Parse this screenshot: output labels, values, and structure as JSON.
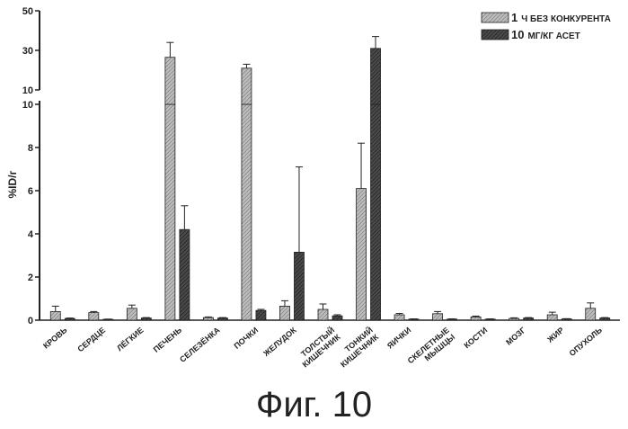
{
  "figure": {
    "caption": "Фиг. 10"
  },
  "chart_data": {
    "type": "bar",
    "ylabel": "%ID/г",
    "xlabel": "",
    "title": "",
    "y_axis": {
      "broken": true,
      "lower_segment": {
        "ylim": [
          0,
          10
        ],
        "ticks": [
          "0",
          "2",
          "4",
          "6",
          "8",
          "10"
        ]
      },
      "upper_segment": {
        "ylim": [
          10,
          50
        ],
        "ticks": [
          "10",
          "30",
          "50"
        ]
      }
    },
    "legend": {
      "placement": "top-right",
      "entries": [
        {
          "number": "1",
          "text": "Ч БЕЗ КОНКУРЕНТА",
          "pattern": "light-hatched"
        },
        {
          "number": "10",
          "text": "МГ/КГ АСЕТ",
          "pattern": "dark-hatched"
        }
      ]
    },
    "categories": [
      {
        "lines": [
          "КРОВЬ"
        ]
      },
      {
        "lines": [
          "СЕРДЦЕ"
        ]
      },
      {
        "lines": [
          "ЛЁГКИЕ"
        ]
      },
      {
        "lines": [
          "ПЕЧЕНЬ"
        ]
      },
      {
        "lines": [
          "СЕЛЕЗЁНКА"
        ]
      },
      {
        "lines": [
          "ПОЧКИ"
        ]
      },
      {
        "lines": [
          "ЖЕЛУДОК"
        ]
      },
      {
        "lines": [
          "ТОЛСТЫЙ",
          "КИШЕЧНИК"
        ]
      },
      {
        "lines": [
          "ТОНКИЙ",
          "КИШЕЧНИК"
        ]
      },
      {
        "lines": [
          "ЯИЧКИ"
        ]
      },
      {
        "lines": [
          "СКЕЛЕТНЫЕ",
          "МЫШЦЫ"
        ]
      },
      {
        "lines": [
          "КОСТИ"
        ]
      },
      {
        "lines": [
          "МОЗГ"
        ]
      },
      {
        "lines": [
          "ЖИР"
        ]
      },
      {
        "lines": [
          "ОПУХОЛЬ"
        ]
      }
    ],
    "series": [
      {
        "legend_index": 0,
        "values": [
          0.4,
          0.35,
          0.55,
          26.5,
          0.12,
          21.0,
          0.65,
          0.5,
          6.1,
          0.25,
          0.3,
          0.15,
          0.08,
          0.25,
          0.55
        ],
        "errors": [
          0.25,
          0.05,
          0.15,
          7.5,
          0.03,
          2.0,
          0.25,
          0.25,
          2.1,
          0.06,
          0.1,
          0.04,
          0.03,
          0.12,
          0.25
        ]
      },
      {
        "legend_index": 1,
        "values": [
          0.08,
          0.04,
          0.1,
          4.2,
          0.1,
          0.45,
          3.15,
          0.2,
          31.0,
          0.05,
          0.05,
          0.05,
          0.1,
          0.06,
          0.1
        ],
        "errors": [
          0.02,
          0.01,
          0.02,
          1.1,
          0.02,
          0.05,
          3.95,
          0.05,
          6.0,
          0.01,
          0.01,
          0.01,
          0.02,
          0.01,
          0.02
        ]
      }
    ]
  }
}
